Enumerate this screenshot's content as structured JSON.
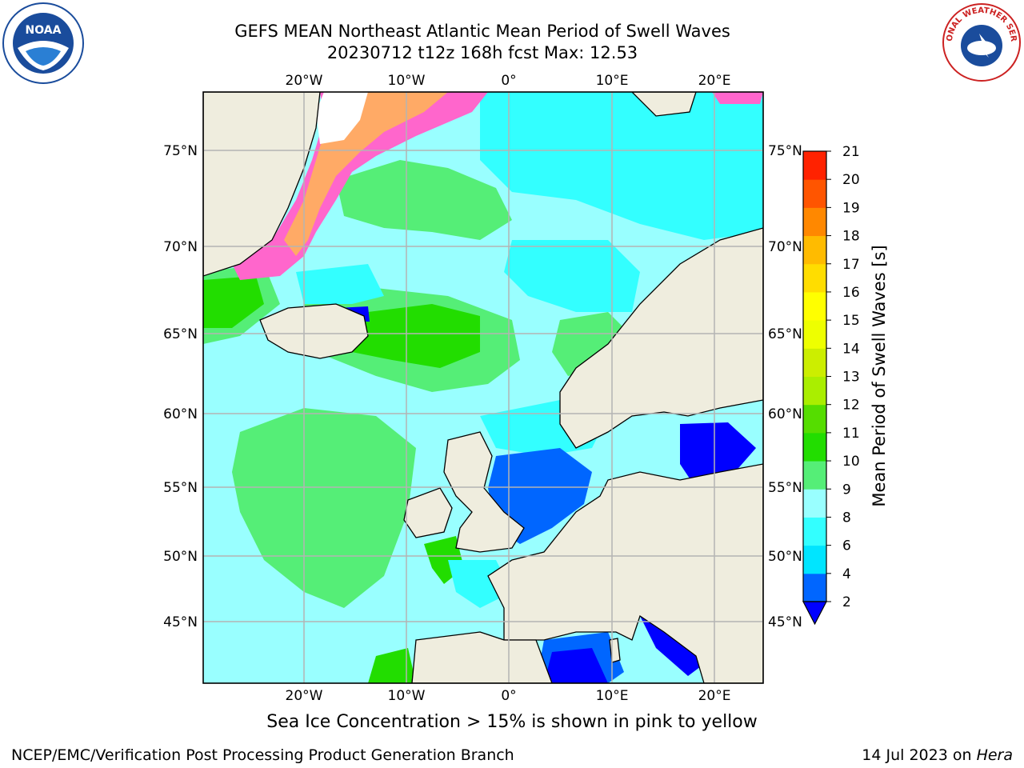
{
  "header": {
    "title_line1": "GEFS MEAN Northeast Atlantic Mean Period of Swell Waves",
    "title_line2": "20230712 t12z 168h fcst   Max: 12.53"
  },
  "map": {
    "lon_labels": [
      "20°W",
      "10°W",
      "0°",
      "10°E",
      "20°E"
    ],
    "lat_labels": [
      "75°N",
      "70°N",
      "65°N",
      "60°N",
      "55°N",
      "50°N",
      "45°N"
    ],
    "colors": {
      "land": "#efedde",
      "ice": "#ffffff",
      "border": "#000000",
      "grid": "#b4b4b4"
    }
  },
  "colorbar": {
    "label": "Mean Period of Swell Waves [s]",
    "ticks": [
      "2",
      "4",
      "6",
      "8",
      "9",
      "10",
      "11",
      "12",
      "13",
      "14",
      "15",
      "16",
      "17",
      "18",
      "19",
      "20",
      "21"
    ],
    "colors": [
      "#0066ff",
      "#00e5ff",
      "#33ffff",
      "#99ffff",
      "#55ee77",
      "#22dd00",
      "#55dd00",
      "#aaee00",
      "#ccee00",
      "#eeff00",
      "#ffff00",
      "#ffdd00",
      "#ffbb00",
      "#ff8800",
      "#ff5500",
      "#ff2200"
    ],
    "extend_color": "#0000ff"
  },
  "footer": {
    "sea_ice_note": "Sea Ice Concentration > 15% is shown in pink to yellow",
    "credit": "NCEP/EMC/Verification Post Processing Product Generation Branch",
    "date_prefix": "14 Jul 2023 on ",
    "machine": "Hera"
  },
  "logos": {
    "noaa_text": "NOAA",
    "nws_text": "NATIONAL WEATHER SERVICE"
  }
}
